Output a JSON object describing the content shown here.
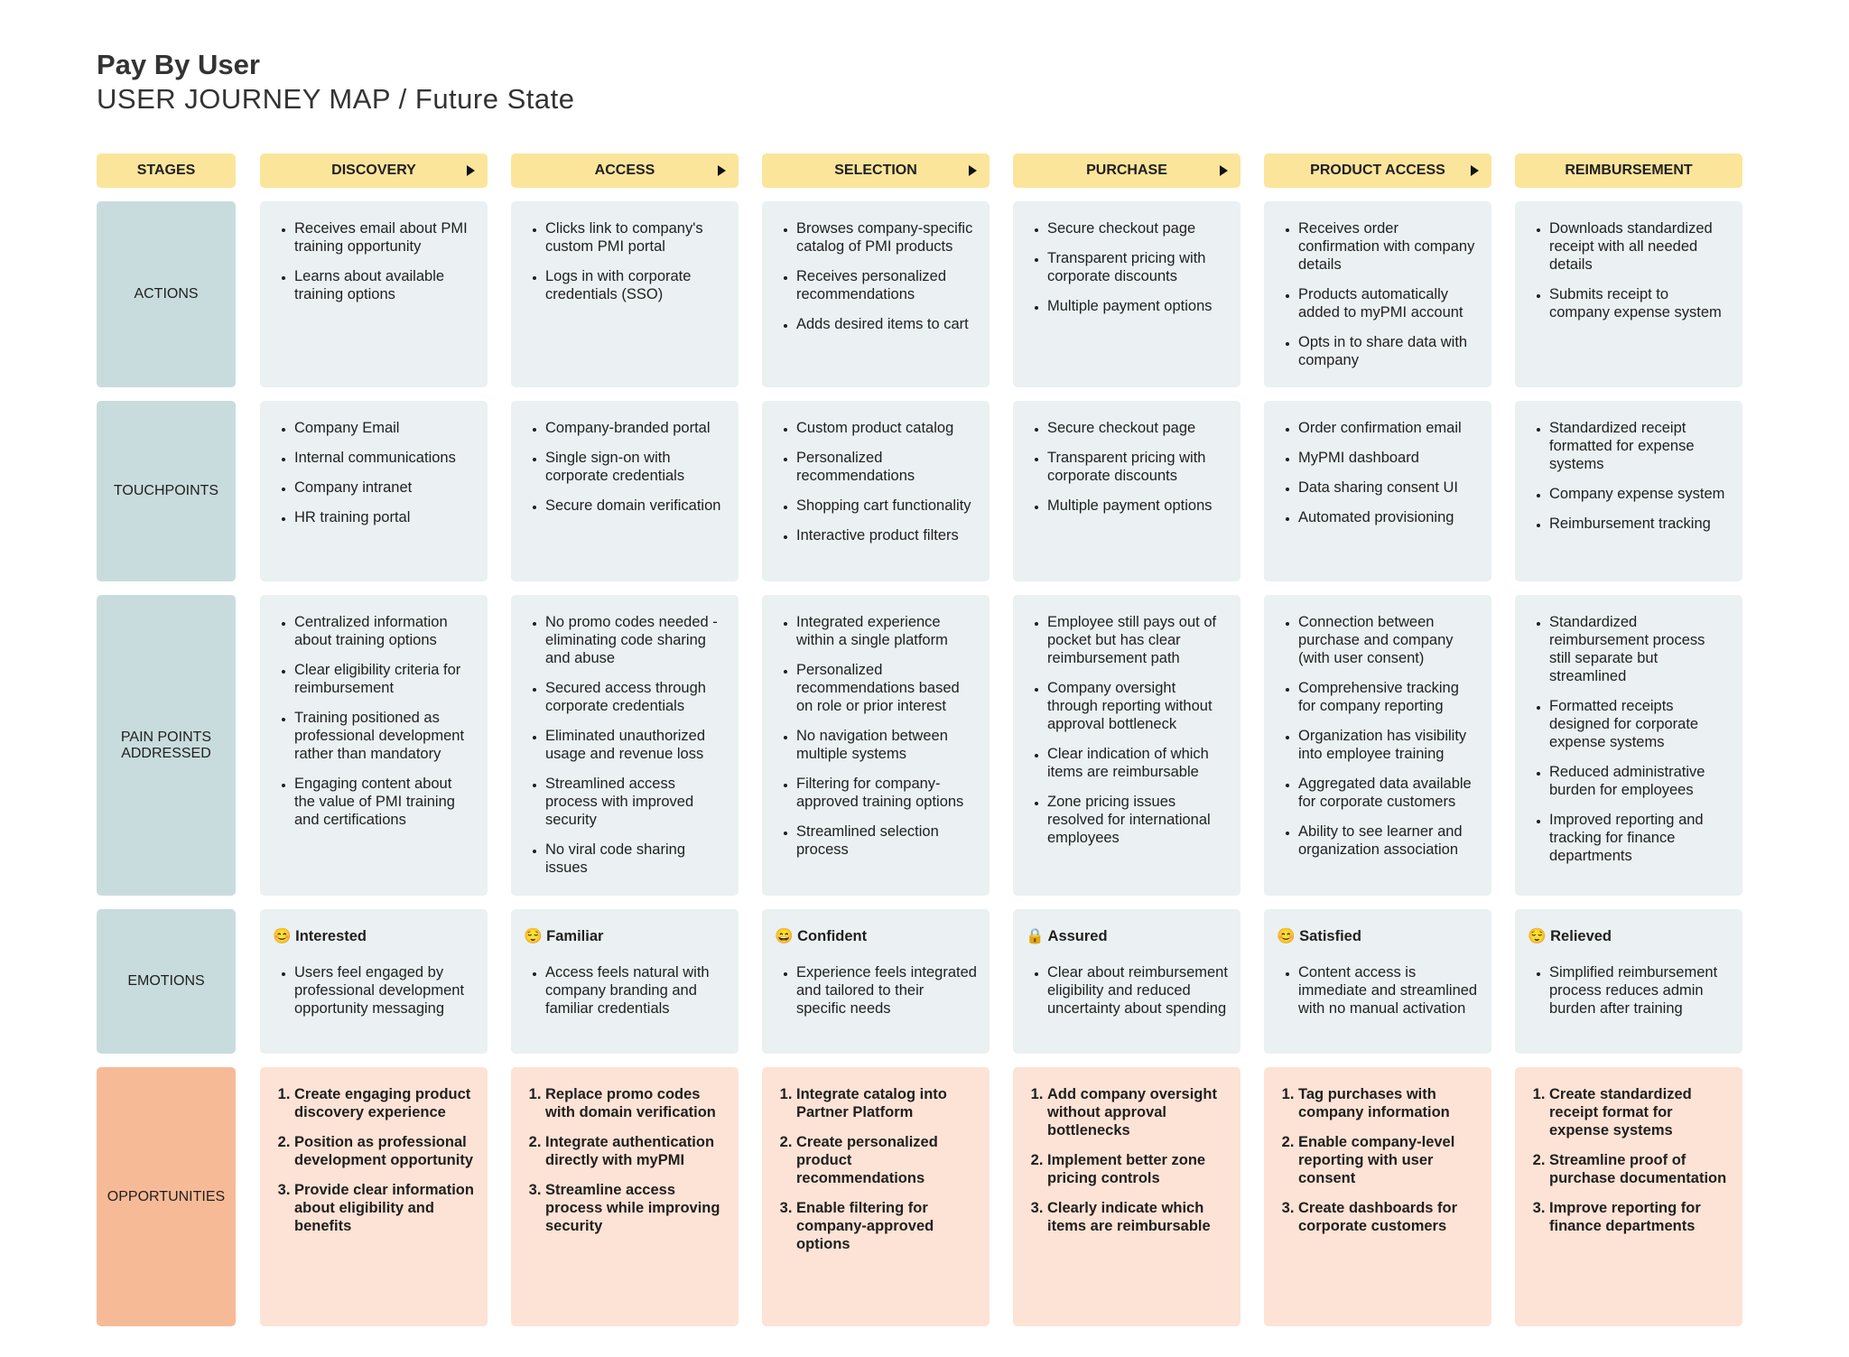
{
  "title": "Pay By User",
  "subtitle": "USER JOURNEY MAP / Future State",
  "row_labels": {
    "stages": "STAGES",
    "actions": "ACTIONS",
    "touchpoints": "TOUCHPOINTS",
    "pain_points": "PAIN POINTS ADDRESSED",
    "emotions": "EMOTIONS",
    "opportunities": "OPPORTUNITIES"
  },
  "stages": [
    {
      "name": "DISCOVERY",
      "actions": [
        "Receives email about PMI training opportunity",
        "Learns about available training options"
      ],
      "touchpoints": [
        "Company Email",
        "Internal communications",
        "Company intranet",
        "HR training portal"
      ],
      "pain_points": [
        "Centralized information about training options",
        "Clear eligibility criteria for reimbursement",
        "Training positioned as professional development rather than mandatory",
        "Engaging content about the value of PMI training and certifications"
      ],
      "emoji": "😊",
      "emotion": "Interested",
      "emotion_items": [
        "Users feel engaged by professional development opportunity messaging"
      ],
      "opportunities": [
        "Create engaging product discovery experience",
        "Position as professional development opportunity",
        "Provide clear information about eligibility and benefits"
      ]
    },
    {
      "name": "ACCESS",
      "actions": [
        "Clicks link to company's custom PMI portal",
        "Logs in with corporate credentials (SSO)"
      ],
      "touchpoints": [
        "Company-branded portal",
        "Single sign-on with corporate credentials",
        "Secure domain verification"
      ],
      "pain_points": [
        "No promo codes needed - eliminating code sharing and abuse",
        "Secured access through corporate credentials",
        "Eliminated unauthorized usage and revenue loss",
        "Streamlined access process with improved security",
        "No viral code sharing issues"
      ],
      "emoji": "😌",
      "emotion": "Familiar",
      "emotion_items": [
        "Access feels natural with company branding and familiar credentials"
      ],
      "opportunities": [
        "Replace promo codes with domain verification",
        "Integrate authentication directly with myPMI",
        "Streamline access process while improving security"
      ]
    },
    {
      "name": "SELECTION",
      "actions": [
        "Browses company-specific catalog of PMI products",
        "Receives personalized recommendations",
        "Adds desired items to cart"
      ],
      "touchpoints": [
        "Custom product catalog",
        "Personalized recommendations",
        "Shopping cart functionality",
        "Interactive product filters"
      ],
      "pain_points": [
        "Integrated experience within a single platform",
        "Personalized recommendations based on role or prior interest",
        "No navigation between multiple systems",
        "Filtering for company-approved training options",
        "Streamlined selection process"
      ],
      "emoji": "😄",
      "emotion": "Confident",
      "emotion_items": [
        "Experience feels integrated and tailored to their specific needs"
      ],
      "opportunities": [
        "Integrate catalog into Partner Platform",
        "Create personalized product recommendations",
        "Enable filtering for company-approved options"
      ]
    },
    {
      "name": "PURCHASE",
      "actions": [
        "Secure checkout page",
        "Transparent pricing with corporate discounts",
        "Multiple payment options"
      ],
      "touchpoints": [
        "Secure checkout page",
        "Transparent pricing with corporate discounts",
        "Multiple payment options"
      ],
      "pain_points": [
        "Employee still pays out of pocket but has clear reimbursement path",
        "Company oversight through reporting without approval bottleneck",
        "Clear indication of which items are reimbursable",
        "Zone pricing issues resolved for international employees"
      ],
      "emoji": "🔒",
      "emotion": "Assured",
      "emotion_items": [
        "Clear about reimbursement eligibility and reduced uncertainty about spending"
      ],
      "opportunities": [
        "Add company oversight without approval bottlenecks",
        "Implement better zone pricing controls",
        "Clearly indicate which items are reimbursable"
      ]
    },
    {
      "name": "PRODUCT ACCESS",
      "actions": [
        "Receives order confirmation with company details",
        "Products automatically added to myPMI account",
        "Opts in to share data with company"
      ],
      "touchpoints": [
        "Order confirmation email",
        "MyPMI dashboard",
        "Data sharing consent UI",
        "Automated provisioning"
      ],
      "pain_points": [
        "Connection between purchase and company (with user consent)",
        "Comprehensive tracking for company reporting",
        "Organization has visibility into employee training",
        "Aggregated data available for corporate customers",
        "Ability to see learner and organization association"
      ],
      "emoji": "😊",
      "emotion": "Satisfied",
      "emotion_items": [
        "Content access is immediate and streamlined with no manual activation"
      ],
      "opportunities": [
        "Tag purchases with company information",
        "Enable company-level reporting with user consent",
        "Create dashboards for corporate customers"
      ]
    },
    {
      "name": "REIMBURSEMENT",
      "actions": [
        "Downloads standardized receipt with all needed details",
        "Submits receipt to company expense system"
      ],
      "touchpoints": [
        "Standardized receipt formatted for expense systems",
        "Company expense system",
        "Reimbursement tracking"
      ],
      "pain_points": [
        "Standardized reimbursement process still separate but streamlined",
        "Formatted receipts designed for corporate expense systems",
        "Reduced administrative burden for employees",
        "Improved reporting and tracking for finance departments"
      ],
      "emoji": "😌",
      "emotion": "Relieved",
      "emotion_items": [
        "Simplified reimbursement process reduces admin burden after training"
      ],
      "opportunities": [
        "Create standardized receipt format for expense systems",
        "Streamline proof of purchase documentation",
        "Improve reporting for finance departments"
      ]
    }
  ]
}
